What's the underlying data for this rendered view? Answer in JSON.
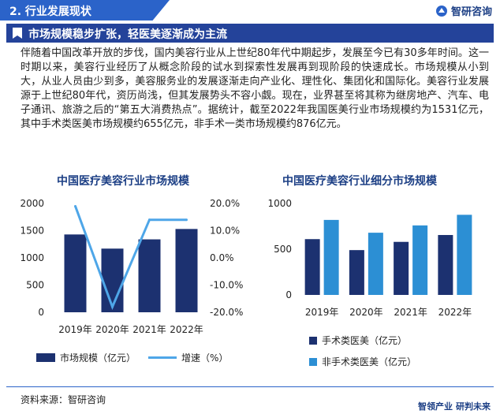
{
  "header": {
    "section": "2. 行业发展现状",
    "brand": "智研咨询"
  },
  "banner": {
    "title": "市场规模稳步扩张，轻医美逐渐成为主流"
  },
  "intro": "伴随着中国改革开放的步伐，国内美容行业从上世纪80年代中期起步，发展至今已有30多年时间。这一时期以来，美容行业经历了从概念阶段的试水到探索性发展再到现阶段的快速成长。市场规模从小到大，从业人员由少到多，美容服务业的发展逐渐走向产业化、理性化、集团化和国际化。美容行业发展源于上世纪80年代，资历尚浅，但其发展势头不容小觑。现在，业界甚至将其称为继房地产、汽车、电子通讯、旅游之后的“第五大消费热点”。据统计，截至2022年我国医美行业市场规模约为1531亿元，其中手术类医美市场规模约655亿元，非手术一类市场规模约876亿元。",
  "footer": {
    "source": "资料来源：智研咨询",
    "slogan_left": "智领产业",
    "slogan_right": "研判未来"
  },
  "colors": {
    "dark": "#1c3170",
    "light": "#4ea6e8",
    "mid": "#2c8fd4",
    "accent": "#2b63c9"
  },
  "chart_data": [
    {
      "type": "bar",
      "title": "中国医疗美容行业市场规模",
      "categories": [
        "2019年",
        "2020年",
        "2021年",
        "2022年"
      ],
      "series": [
        {
          "name": "市场规模（亿元）",
          "type": "bar",
          "axis": "left",
          "values": [
            1430,
            1170,
            1340,
            1531
          ]
        },
        {
          "name": "增速（%）",
          "type": "line",
          "axis": "right",
          "values": [
            19.0,
            -18.0,
            14.0,
            14.0
          ]
        }
      ],
      "ylim": [
        0,
        2000
      ],
      "yticks": [
        "0",
        "500",
        "1000",
        "1500",
        "2000"
      ],
      "y2lim": [
        -20,
        20
      ],
      "y2ticks": [
        "-20.0%",
        "-10.0%",
        "0.0%",
        "10.0%",
        "20.0%"
      ],
      "legend": "bottom"
    },
    {
      "type": "bar",
      "title": "中国医疗美容行业细分市场规模",
      "categories": [
        "2019年",
        "2020年",
        "2021年",
        "2022年"
      ],
      "series": [
        {
          "name": "手术类医美（亿元）",
          "values": [
            610,
            490,
            580,
            655
          ]
        },
        {
          "name": "非手术类医美（亿元）",
          "values": [
            820,
            680,
            760,
            876
          ]
        }
      ],
      "ylim": [
        0,
        1000
      ],
      "yticks": [
        "0",
        "500",
        "1000"
      ],
      "legend": "bottom"
    }
  ]
}
